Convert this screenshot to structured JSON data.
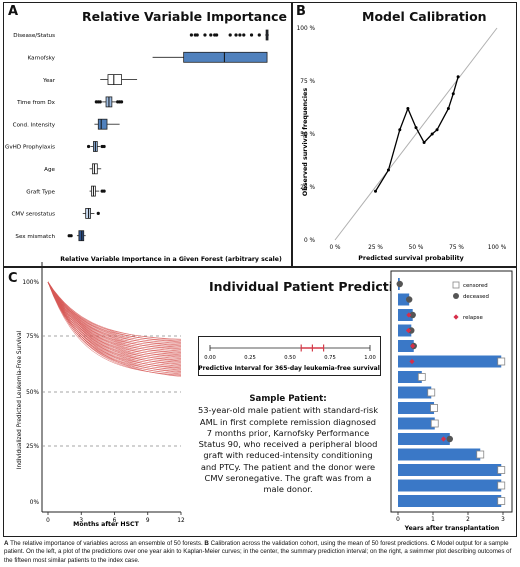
{
  "panel_a": {
    "letter": "A",
    "title": "Relative Variable Importance"
  },
  "panel_b": {
    "letter": "B",
    "title": "Model Calibration"
  },
  "panel_c": {
    "letter": "C",
    "title": "Individual Patient Prediction"
  },
  "sample_patient": {
    "heading": "Sample Patient:",
    "text": "53-year-old male patient with standard-risk AML in first complete remission diagnosed 7 months prior, Karnofsky Performance Status 90, who received a peripheral blood graft with reduced-intensity conditioning and PTCy. The patient and the donor were CMV seronegative. The graft was from a male donor."
  },
  "caption": {
    "a_label": "A",
    "a_text": "The relative importance of variables across an ensemble of 50 forests.",
    "b_label": "B",
    "b_text": "Calibration across the validation cohort, using the mean of 50 forest predictions.",
    "c_label": "C",
    "c_text": "Model output for a sample patient. On the left, a plot of the predictions over one year akin to Kaplan-Meier curves; in the center, the summary prediction interval; on the right, a swimmer plot describing outcomes of the fifteen most similar patients to the index case."
  },
  "chart_data": [
    {
      "type": "boxplot",
      "title": "Relative Variable Importance",
      "xlabel": "Relative Variable Importance in a Given Forest (arbitrary scale)",
      "ylabel": "",
      "xlim": [
        0,
        1
      ],
      "variables": [
        {
          "name": "Disease/Status",
          "q1": 0.985,
          "median": 0.99,
          "q3": 0.995,
          "wmin": 0.98,
          "wmax": 1.0,
          "fill": "#6f97c8",
          "outliers": [
            0.6,
            0.62,
            0.63,
            0.67,
            0.7,
            0.72,
            0.73,
            0.8,
            0.83,
            0.85,
            0.87,
            0.91,
            0.95
          ]
        },
        {
          "name": "Karnofsky",
          "q1": 0.56,
          "median": 0.77,
          "q3": 0.99,
          "wmin": 0.4,
          "wmax": 0.99,
          "fill": "#5081bd",
          "outliers": []
        },
        {
          "name": "Year",
          "q1": 0.17,
          "median": 0.2,
          "q3": 0.24,
          "wmin": 0.13,
          "wmax": 0.32,
          "fill": "#ffffff",
          "outliers": []
        },
        {
          "name": "Time from Dx",
          "q1": 0.16,
          "median": 0.175,
          "q3": 0.19,
          "wmin": 0.14,
          "wmax": 0.215,
          "fill": "#9dbbe0",
          "outliers": [
            0.11,
            0.12,
            0.13,
            0.22,
            0.23,
            0.24
          ]
        },
        {
          "name": "Cond. Intensity",
          "q1": 0.12,
          "median": 0.135,
          "q3": 0.165,
          "wmin": 0.1,
          "wmax": 0.23,
          "fill": "#5081bd",
          "outliers": []
        },
        {
          "name": "GvHD Prophylaxis",
          "q1": 0.095,
          "median": 0.105,
          "q3": 0.115,
          "wmin": 0.08,
          "wmax": 0.13,
          "fill": "#8eb1dc",
          "outliers": [
            0.07,
            0.14,
            0.15
          ]
        },
        {
          "name": "Age",
          "q1": 0.09,
          "median": 0.1,
          "q3": 0.115,
          "wmin": 0.075,
          "wmax": 0.135,
          "fill": "#ffffff",
          "outliers": []
        },
        {
          "name": "Graft Type",
          "q1": 0.085,
          "median": 0.095,
          "q3": 0.105,
          "wmin": 0.075,
          "wmax": 0.125,
          "fill": "#ffffff",
          "outliers": [
            0.14,
            0.15
          ]
        },
        {
          "name": "CMV serostatus",
          "q1": 0.055,
          "median": 0.07,
          "q3": 0.08,
          "wmin": 0.04,
          "wmax": 0.1,
          "fill": "#c8d9ee",
          "outliers": [
            0.12
          ]
        },
        {
          "name": "Sex mismatch",
          "q1": 0.02,
          "median": 0.035,
          "q3": 0.045,
          "wmin": 0.01,
          "wmax": 0.055,
          "fill": "#2f5592",
          "outliers": [
            -0.03,
            -0.02
          ]
        }
      ]
    },
    {
      "type": "line",
      "title": "Model Calibration",
      "xlabel": "Predicted survival probability",
      "ylabel": "Observed survival frequencies",
      "xlim": [
        0,
        1
      ],
      "ylim": [
        0,
        1
      ],
      "xticks": [
        "0 %",
        "25 %",
        "50 %",
        "75 %",
        "100 %"
      ],
      "yticks": [
        "0 %",
        "25 %",
        "50 %",
        "75 %",
        "100 %"
      ],
      "reference_line": "identity",
      "series": [
        {
          "x": [
            0.25,
            0.33,
            0.4,
            0.45,
            0.5,
            0.55,
            0.6,
            0.63,
            0.7,
            0.73,
            0.76
          ],
          "y": [
            0.23,
            0.33,
            0.52,
            0.62,
            0.53,
            0.46,
            0.5,
            0.52,
            0.62,
            0.69,
            0.77
          ]
        }
      ]
    },
    {
      "type": "line",
      "title": "",
      "xlabel": "Months after HSCT",
      "ylabel": "Individualized Predicted Leukemia-Free Survival",
      "xlim": [
        0,
        12
      ],
      "ylim": [
        0,
        1
      ],
      "xticks": [
        "0",
        "3",
        "6",
        "9",
        "12"
      ],
      "yticks": [
        "0%",
        "25%",
        "50%",
        "75%",
        "100%"
      ],
      "reference_lines_y": [
        0.25,
        0.5,
        0.75
      ],
      "curve_count": 50,
      "final_values_range": [
        0.57,
        0.74
      ]
    },
    {
      "type": "interval",
      "title": "Predictive Interval for 365-day leukemia-free survival",
      "xlim": [
        0,
        1
      ],
      "xticks": [
        "0.00",
        "0.25",
        "0.50",
        "0.75",
        "1.00"
      ],
      "interval": {
        "low": 0.57,
        "median": 0.64,
        "high": 0.71
      }
    },
    {
      "type": "swimmer",
      "xlabel": "Years after transplantation",
      "xlim": [
        0,
        3
      ],
      "xticks": [
        "0",
        "1",
        "2",
        "3"
      ],
      "legend": [
        {
          "label": "censored",
          "marker": "open-square"
        },
        {
          "label": "deceased",
          "marker": "filled-circle"
        },
        {
          "label": "relapse",
          "marker": "red-diamond"
        }
      ],
      "patients": [
        {
          "years": 0.05,
          "outcome": "deceased",
          "relapse": null
        },
        {
          "years": 0.32,
          "outcome": "deceased",
          "relapse": null
        },
        {
          "years": 0.42,
          "outcome": "deceased",
          "relapse": 0.31
        },
        {
          "years": 0.38,
          "outcome": "deceased",
          "relapse": 0.3
        },
        {
          "years": 0.45,
          "outcome": "deceased",
          "relapse": 0.42
        },
        {
          "years": 2.95,
          "outcome": "censored",
          "relapse": 0.4
        },
        {
          "years": 0.68,
          "outcome": "censored",
          "relapse": null
        },
        {
          "years": 0.95,
          "outcome": "censored",
          "relapse": null
        },
        {
          "years": 1.03,
          "outcome": "censored",
          "relapse": null
        },
        {
          "years": 1.05,
          "outcome": "censored",
          "relapse": null
        },
        {
          "years": 1.48,
          "outcome": "deceased",
          "relapse": 1.3
        },
        {
          "years": 2.35,
          "outcome": "censored",
          "relapse": null
        },
        {
          "years": 2.95,
          "outcome": "censored",
          "relapse": null
        },
        {
          "years": 2.95,
          "outcome": "censored",
          "relapse": null
        },
        {
          "years": 2.95,
          "outcome": "censored",
          "relapse": null
        }
      ]
    }
  ]
}
